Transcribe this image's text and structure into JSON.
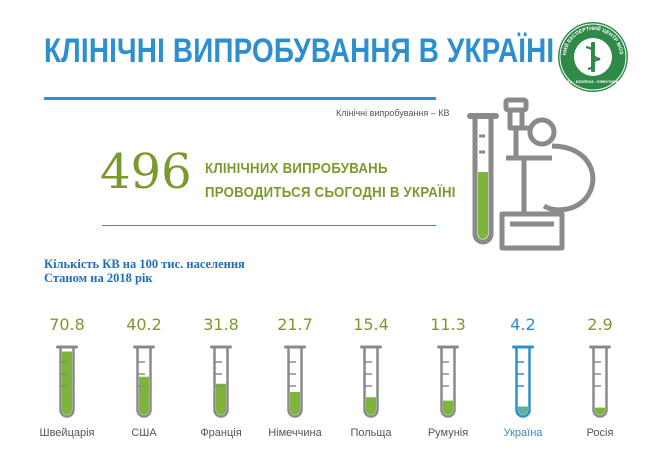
{
  "header": {
    "title": "КЛІНІЧНІ ВИПРОБУВАННЯ В УКРАЇНІ",
    "subtitle": "Клінічні випробування – КВ"
  },
  "headline": {
    "number": "496",
    "line1": "КЛІНІЧНИХ ВИПРОБУВАНЬ",
    "line2": "ПРОВОДИТЬСЯ СЬОГОДНІ В УКРАЇНІ"
  },
  "logo": {
    "arc_text": "ДЕРЖАВНИЙ ЕКСПЕРТНИЙ ЦЕНТР МОЗ УКРАЇНИ",
    "bottom_text": "ЯКІСТЬ · БЕЗПЕКА · ЕФЕКТИВНІСТЬ"
  },
  "colors": {
    "title_blue": "#2e8fce",
    "green": "#7a9a2e",
    "tube_fill": "#7db43a",
    "tube_outline": "#8a8a8a",
    "highlight": "#2e8fce"
  },
  "icons": [
    "test-tube-icon",
    "microscope-icon",
    "logo-emblem"
  ],
  "chart_data": {
    "type": "bar",
    "title": "Кількість КВ на 100 тис. населення",
    "subtitle": "Станом на 2018 рік",
    "highlight": "Україна",
    "categories": [
      "Швейцарія",
      "США",
      "Франція",
      "Німеччина",
      "Польща",
      "Румунія",
      "Україна",
      "Росія"
    ],
    "values": [
      70.8,
      40.2,
      31.8,
      21.7,
      15.4,
      11.3,
      4.2,
      2.9
    ],
    "labels": [
      "70.8",
      "40.2",
      "31.8",
      "21.7",
      "15.4",
      "11.3",
      "4.2",
      "2.9"
    ],
    "ylim": [
      0,
      75
    ]
  }
}
